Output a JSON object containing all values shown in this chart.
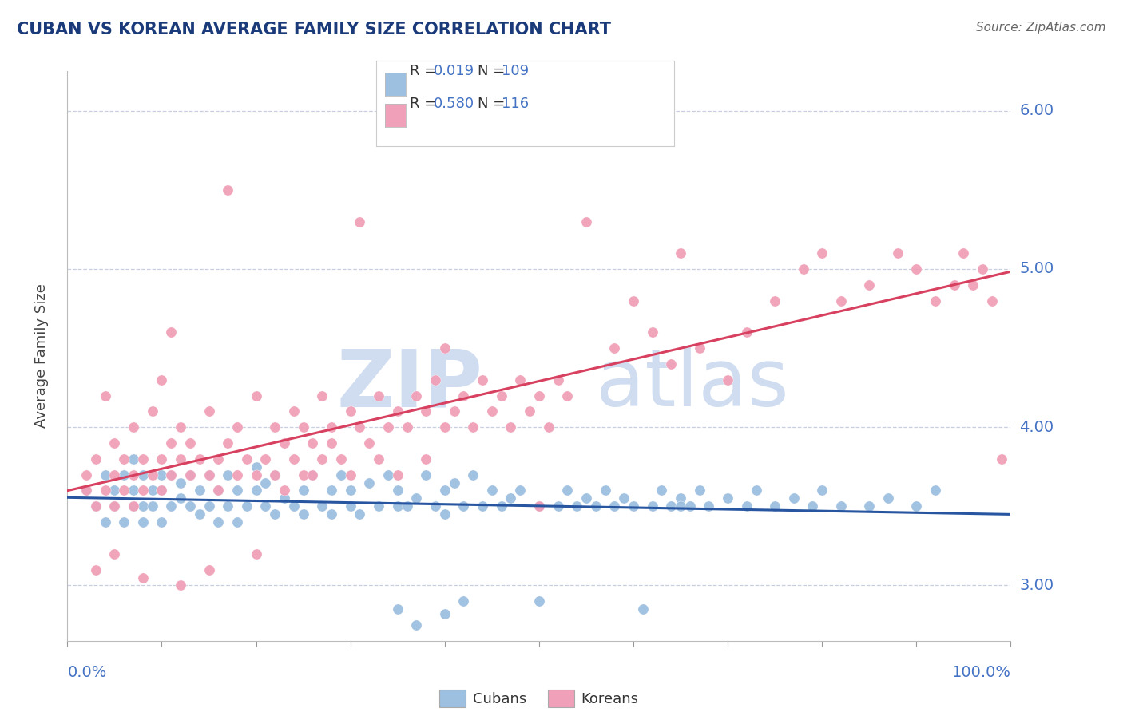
{
  "title": "CUBAN VS KOREAN AVERAGE FAMILY SIZE CORRELATION CHART",
  "source": "Source: ZipAtlas.com",
  "ylabel": "Average Family Size",
  "yticks": [
    3.0,
    4.0,
    5.0,
    6.0
  ],
  "xlim": [
    0.0,
    1.0
  ],
  "ylim": [
    2.65,
    6.25
  ],
  "cubans_R": 0.019,
  "cubans_N": 109,
  "koreans_R": 0.58,
  "koreans_N": 116,
  "cuban_scatter_color": "#9dbfe0",
  "korean_scatter_color": "#f0a0b8",
  "cuban_line_color": "#2855a0",
  "korean_line_color": "#d84060",
  "title_color": "#1a3a7a",
  "axis_label_color": "#4472c4",
  "watermark_color": "#d0ddf0",
  "background_color": "#ffffff",
  "grid_color": "#c8cfe0",
  "cuban_x": [
    0.02,
    0.03,
    0.04,
    0.04,
    0.05,
    0.05,
    0.06,
    0.06,
    0.07,
    0.07,
    0.07,
    0.08,
    0.08,
    0.08,
    0.09,
    0.09,
    0.1,
    0.1,
    0.1,
    0.11,
    0.11,
    0.12,
    0.12,
    0.13,
    0.13,
    0.14,
    0.14,
    0.15,
    0.15,
    0.16,
    0.16,
    0.17,
    0.17,
    0.18,
    0.18,
    0.19,
    0.2,
    0.2,
    0.21,
    0.21,
    0.22,
    0.22,
    0.23,
    0.24,
    0.25,
    0.25,
    0.26,
    0.27,
    0.28,
    0.28,
    0.29,
    0.3,
    0.3,
    0.31,
    0.32,
    0.33,
    0.34,
    0.35,
    0.35,
    0.36,
    0.37,
    0.38,
    0.39,
    0.4,
    0.4,
    0.41,
    0.42,
    0.43,
    0.44,
    0.45,
    0.46,
    0.47,
    0.48,
    0.5,
    0.5,
    0.52,
    0.53,
    0.54,
    0.55,
    0.56,
    0.57,
    0.58,
    0.59,
    0.6,
    0.61,
    0.62,
    0.63,
    0.64,
    0.65,
    0.65,
    0.66,
    0.67,
    0.68,
    0.7,
    0.72,
    0.73,
    0.75,
    0.77,
    0.79,
    0.8,
    0.82,
    0.35,
    0.37,
    0.4,
    0.42,
    0.85,
    0.87,
    0.9,
    0.92
  ],
  "cuban_y": [
    3.6,
    3.5,
    3.7,
    3.4,
    3.6,
    3.5,
    3.7,
    3.4,
    3.6,
    3.5,
    3.8,
    3.5,
    3.7,
    3.4,
    3.6,
    3.5,
    3.7,
    3.4,
    3.6,
    3.5,
    3.7,
    3.55,
    3.65,
    3.5,
    3.7,
    3.6,
    3.45,
    3.7,
    3.5,
    3.6,
    3.4,
    3.7,
    3.5,
    3.6,
    3.4,
    3.5,
    3.6,
    3.75,
    3.5,
    3.65,
    3.45,
    3.7,
    3.55,
    3.5,
    3.6,
    3.45,
    3.7,
    3.5,
    3.6,
    3.45,
    3.7,
    3.5,
    3.6,
    3.45,
    3.65,
    3.5,
    3.7,
    3.5,
    3.6,
    3.5,
    3.55,
    3.7,
    3.5,
    3.6,
    3.45,
    3.65,
    3.5,
    3.7,
    3.5,
    3.6,
    3.5,
    3.55,
    3.6,
    3.5,
    2.9,
    3.5,
    3.6,
    3.5,
    3.55,
    3.5,
    3.6,
    3.5,
    3.55,
    3.5,
    2.85,
    3.5,
    3.6,
    3.5,
    3.55,
    3.5,
    3.5,
    3.6,
    3.5,
    3.55,
    3.5,
    3.6,
    3.5,
    3.55,
    3.5,
    3.6,
    3.5,
    2.85,
    2.75,
    2.82,
    2.9,
    3.5,
    3.55,
    3.5,
    3.6
  ],
  "korean_x": [
    0.02,
    0.02,
    0.03,
    0.03,
    0.04,
    0.04,
    0.05,
    0.05,
    0.05,
    0.06,
    0.06,
    0.07,
    0.07,
    0.07,
    0.08,
    0.08,
    0.09,
    0.09,
    0.1,
    0.1,
    0.1,
    0.11,
    0.11,
    0.11,
    0.12,
    0.12,
    0.13,
    0.13,
    0.14,
    0.15,
    0.15,
    0.16,
    0.16,
    0.17,
    0.17,
    0.18,
    0.18,
    0.19,
    0.2,
    0.2,
    0.21,
    0.22,
    0.22,
    0.23,
    0.23,
    0.24,
    0.24,
    0.25,
    0.25,
    0.26,
    0.26,
    0.27,
    0.27,
    0.28,
    0.28,
    0.29,
    0.3,
    0.3,
    0.31,
    0.31,
    0.32,
    0.33,
    0.33,
    0.34,
    0.35,
    0.35,
    0.36,
    0.37,
    0.38,
    0.38,
    0.39,
    0.4,
    0.4,
    0.41,
    0.42,
    0.43,
    0.44,
    0.45,
    0.46,
    0.47,
    0.48,
    0.49,
    0.5,
    0.5,
    0.51,
    0.52,
    0.53,
    0.55,
    0.58,
    0.6,
    0.62,
    0.64,
    0.65,
    0.67,
    0.7,
    0.72,
    0.75,
    0.78,
    0.8,
    0.82,
    0.85,
    0.88,
    0.9,
    0.92,
    0.94,
    0.95,
    0.96,
    0.97,
    0.98,
    0.99,
    0.03,
    0.05,
    0.08,
    0.12,
    0.15,
    0.2
  ],
  "korean_y": [
    3.6,
    3.7,
    3.8,
    3.5,
    3.6,
    4.2,
    3.7,
    3.9,
    3.5,
    3.8,
    3.6,
    4.0,
    3.7,
    3.5,
    3.8,
    3.6,
    4.1,
    3.7,
    3.8,
    3.6,
    4.3,
    3.9,
    3.7,
    4.6,
    3.8,
    4.0,
    3.7,
    3.9,
    3.8,
    3.7,
    4.1,
    3.8,
    3.6,
    3.9,
    5.5,
    3.7,
    4.0,
    3.8,
    3.7,
    4.2,
    3.8,
    4.0,
    3.7,
    3.9,
    3.6,
    4.1,
    3.8,
    3.7,
    4.0,
    3.9,
    3.7,
    4.2,
    3.8,
    3.9,
    4.0,
    3.8,
    4.1,
    3.7,
    4.0,
    5.3,
    3.9,
    4.2,
    3.8,
    4.0,
    4.1,
    3.7,
    4.0,
    4.2,
    4.1,
    3.8,
    4.3,
    4.0,
    4.5,
    4.1,
    4.2,
    4.0,
    4.3,
    4.1,
    4.2,
    4.0,
    4.3,
    4.1,
    4.2,
    3.5,
    4.0,
    4.3,
    4.2,
    5.3,
    4.5,
    4.8,
    4.6,
    4.4,
    5.1,
    4.5,
    4.3,
    4.6,
    4.8,
    5.0,
    5.1,
    4.8,
    4.9,
    5.1,
    5.0,
    4.8,
    4.9,
    5.1,
    4.9,
    5.0,
    4.8,
    3.8,
    3.1,
    3.2,
    3.05,
    3.0,
    3.1,
    3.2
  ]
}
